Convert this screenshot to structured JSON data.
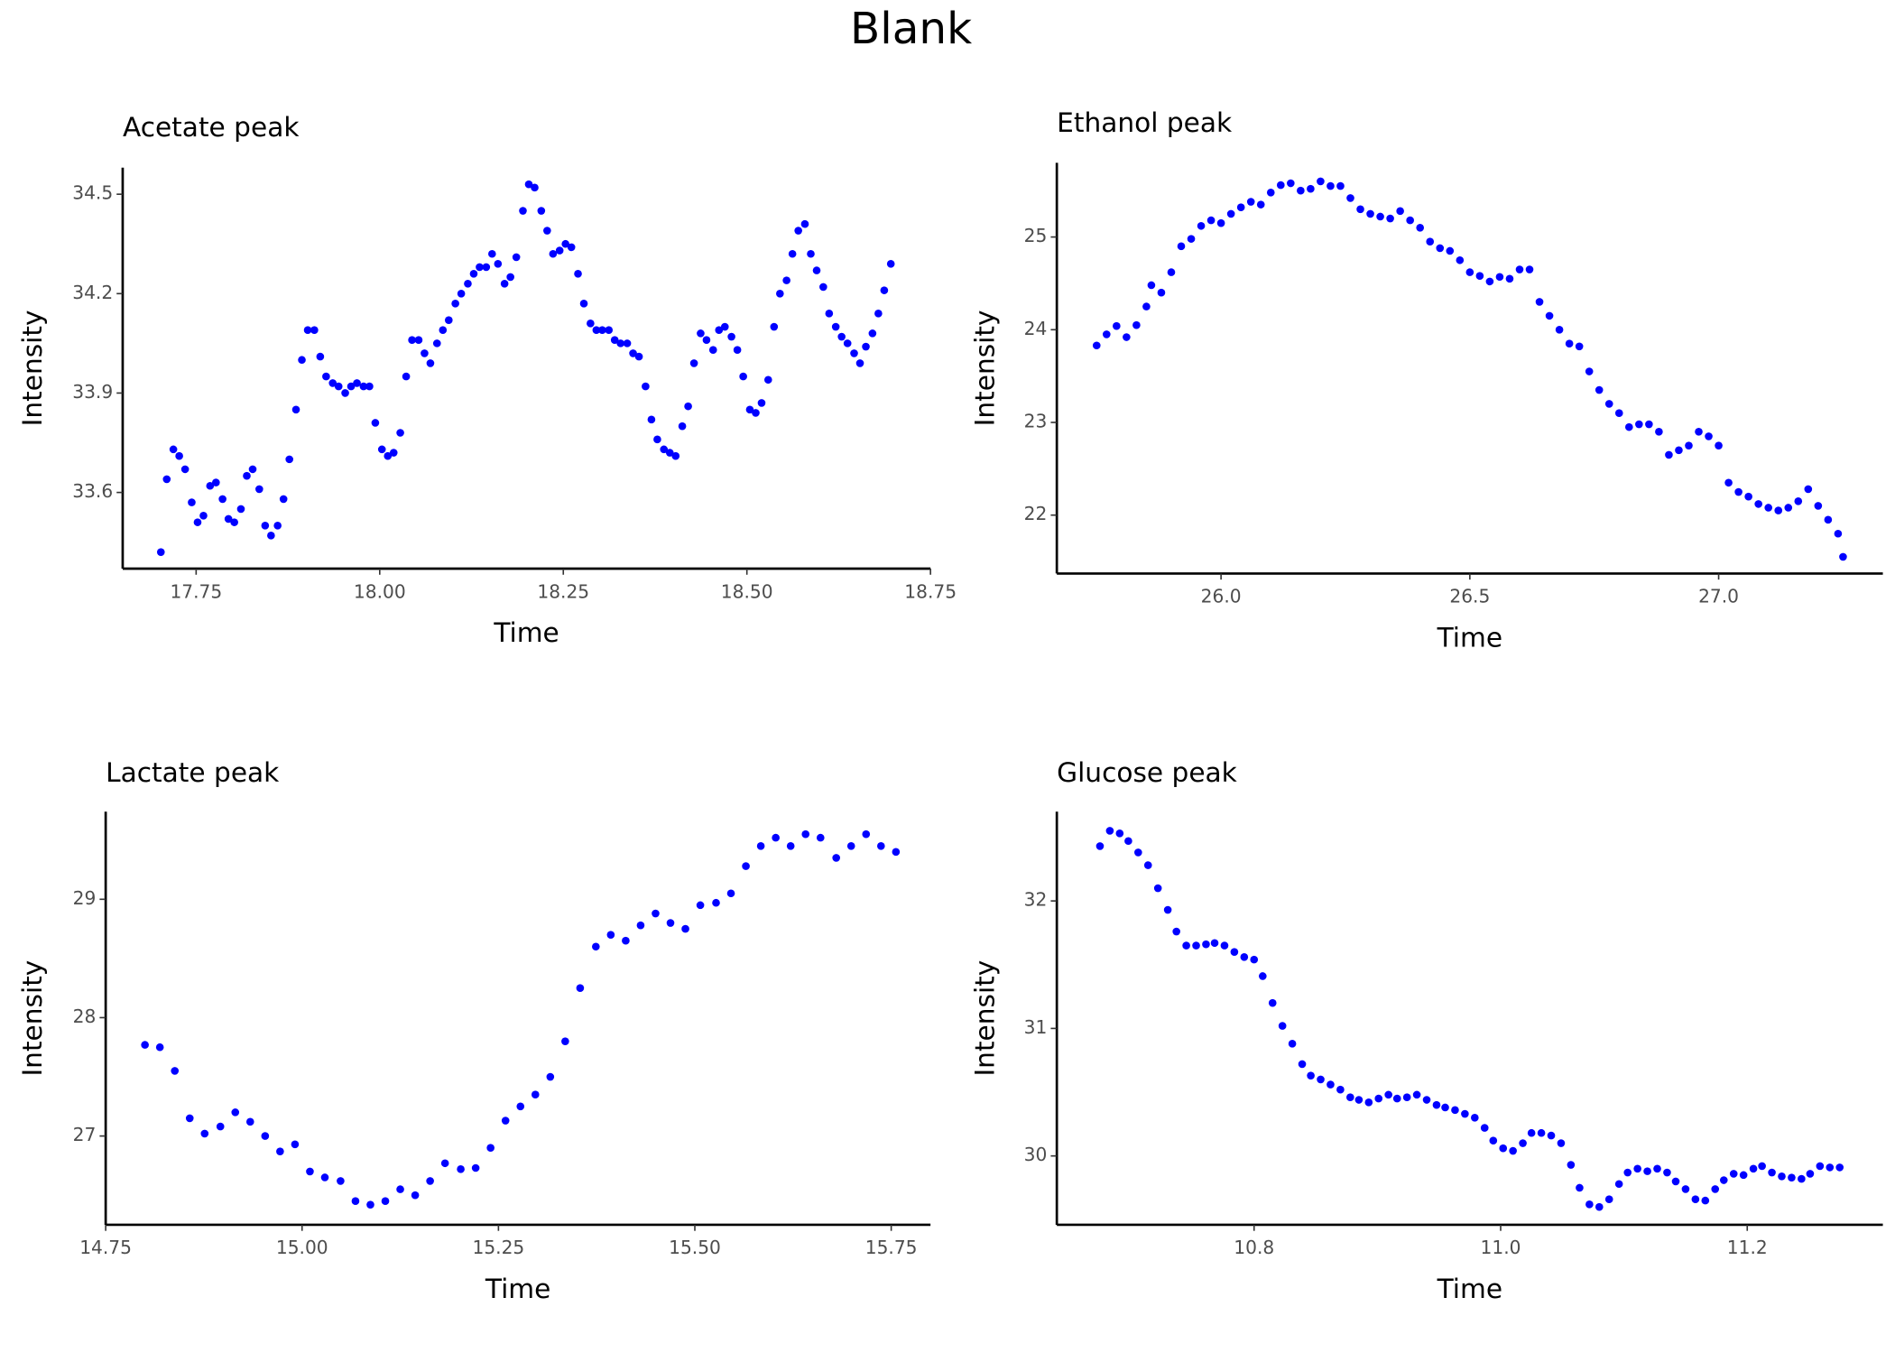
{
  "title": "Blank",
  "chart_data": [
    {
      "type": "scatter",
      "title": "Acetate peak",
      "x_label": "Time",
      "y_label": "Intensity",
      "xlim": [
        17.65,
        18.75
      ],
      "ylim": [
        33.37,
        34.58
      ],
      "xticks": [
        17.75,
        {
          "value": 18,
          "label": "18.00"
        },
        18.25,
        {
          "value": 18.5,
          "label": "18.50"
        },
        18.75
      ],
      "yticks": [
        33.6,
        33.9,
        34.2,
        34.5
      ],
      "x": [
        17.702,
        17.71,
        17.719,
        17.727,
        17.735,
        17.744,
        17.752,
        17.76,
        17.769,
        17.777,
        17.786,
        17.794,
        17.802,
        17.811,
        17.819,
        17.827,
        17.836,
        17.844,
        17.852,
        17.861,
        17.869,
        17.877,
        17.886,
        17.894,
        17.902,
        17.911,
        17.919,
        17.927,
        17.936,
        17.944,
        17.953,
        17.961,
        17.969,
        17.978,
        17.986,
        17.994,
        18.003,
        18.011,
        18.019,
        18.028,
        18.036,
        18.044,
        18.053,
        18.061,
        18.069,
        18.078,
        18.086,
        18.094,
        18.103,
        18.111,
        18.12,
        18.128,
        18.136,
        18.145,
        18.153,
        18.161,
        18.17,
        18.178,
        18.186,
        18.195,
        18.203,
        18.211,
        18.22,
        18.228,
        18.236,
        18.245,
        18.253,
        18.261,
        18.27,
        18.278,
        18.287,
        18.295,
        18.303,
        18.312,
        18.32,
        18.328,
        18.337,
        18.345,
        18.353,
        18.362,
        18.37,
        18.378,
        18.387,
        18.395,
        18.403,
        18.412,
        18.42,
        18.428,
        18.437,
        18.445,
        18.454,
        18.462,
        18.47,
        18.479,
        18.487,
        18.495,
        18.504,
        18.512,
        18.52,
        18.529,
        18.537,
        18.545,
        18.554,
        18.562,
        18.57,
        18.579,
        18.587,
        18.595,
        18.604,
        18.612,
        18.621,
        18.629,
        18.637,
        18.646,
        18.654,
        18.662,
        18.671,
        18.679,
        18.687,
        18.696
      ],
      "series": [
        {
          "color": "#0000ff",
          "values": [
            33.42,
            33.64,
            33.73,
            33.71,
            33.67,
            33.57,
            33.51,
            33.53,
            33.62,
            33.63,
            33.58,
            33.52,
            33.51,
            33.55,
            33.65,
            33.67,
            33.61,
            33.5,
            33.47,
            33.5,
            33.58,
            33.7,
            33.85,
            34.0,
            34.09,
            34.09,
            34.01,
            33.95,
            33.93,
            33.92,
            33.9,
            33.92,
            33.93,
            33.92,
            33.92,
            33.81,
            33.73,
            33.71,
            33.72,
            33.78,
            33.95,
            34.06,
            34.06,
            34.02,
            33.99,
            34.05,
            34.09,
            34.12,
            34.17,
            34.2,
            34.23,
            34.26,
            34.28,
            34.28,
            34.32,
            34.29,
            34.23,
            34.25,
            34.31,
            34.45,
            34.53,
            34.52,
            34.45,
            34.39,
            34.32,
            34.33,
            34.35,
            34.34,
            34.26,
            34.17,
            34.11,
            34.09,
            34.09,
            34.09,
            34.06,
            34.05,
            34.05,
            34.02,
            34.01,
            33.92,
            33.82,
            33.76,
            33.73,
            33.72,
            33.71,
            33.8,
            33.86,
            33.99,
            34.08,
            34.06,
            34.03,
            34.09,
            34.1,
            34.07,
            34.03,
            33.95,
            33.85,
            33.84,
            33.87,
            33.94,
            34.1,
            34.2,
            34.24,
            34.32,
            34.39,
            34.41,
            34.32,
            34.27,
            34.22,
            34.14,
            34.1,
            34.07,
            34.05,
            34.02,
            33.99,
            34.04,
            34.08,
            34.14,
            34.21,
            34.29
          ]
        }
      ]
    },
    {
      "type": "scatter",
      "title": "Ethanol peak",
      "x_label": "Time",
      "y_label": "Intensity",
      "xlim": [
        25.67,
        27.33
      ],
      "ylim": [
        21.37,
        25.8
      ],
      "xticks": [
        {
          "value": 26,
          "label": "26.0"
        },
        26.5,
        {
          "value": 27,
          "label": "27.0"
        }
      ],
      "yticks": [
        22,
        23,
        24,
        25
      ],
      "x": [
        25.75,
        25.77,
        25.79,
        25.81,
        25.83,
        25.85,
        25.86,
        25.88,
        25.9,
        25.92,
        25.94,
        25.96,
        25.98,
        26.0,
        26.02,
        26.04,
        26.06,
        26.08,
        26.1,
        26.12,
        26.14,
        26.16,
        26.18,
        26.2,
        26.22,
        26.24,
        26.26,
        26.28,
        26.3,
        26.32,
        26.34,
        26.36,
        26.38,
        26.4,
        26.42,
        26.44,
        26.46,
        26.48,
        26.5,
        26.52,
        26.54,
        26.56,
        26.58,
        26.6,
        26.62,
        26.64,
        26.66,
        26.68,
        26.7,
        26.72,
        26.74,
        26.76,
        26.78,
        26.8,
        26.82,
        26.84,
        26.86,
        26.88,
        26.9,
        26.92,
        26.94,
        26.96,
        26.98,
        27.0,
        27.02,
        27.04,
        27.06,
        27.08,
        27.1,
        27.12,
        27.14,
        27.16,
        27.18,
        27.2,
        27.22,
        27.24,
        27.25
      ],
      "series": [
        {
          "color": "#0000ff",
          "values": [
            23.83,
            23.95,
            24.04,
            23.92,
            24.05,
            24.25,
            24.48,
            24.4,
            24.62,
            24.9,
            24.98,
            25.12,
            25.18,
            25.15,
            25.25,
            25.32,
            25.38,
            25.35,
            25.48,
            25.56,
            25.58,
            25.5,
            25.52,
            25.6,
            25.55,
            25.55,
            25.42,
            25.3,
            25.25,
            25.22,
            25.2,
            25.28,
            25.18,
            25.1,
            24.95,
            24.88,
            24.85,
            24.75,
            24.62,
            24.58,
            24.52,
            24.57,
            24.55,
            24.65,
            24.65,
            24.3,
            24.15,
            24.0,
            23.85,
            23.82,
            23.55,
            23.35,
            23.2,
            23.1,
            22.95,
            22.98,
            22.98,
            22.9,
            22.65,
            22.7,
            22.75,
            22.9,
            22.85,
            22.75,
            22.35,
            22.25,
            22.2,
            22.12,
            22.08,
            22.05,
            22.08,
            22.15,
            22.28,
            22.1,
            21.95,
            21.8,
            21.55
          ]
        }
      ]
    },
    {
      "type": "scatter",
      "title": "Lactate peak",
      "x_label": "Time",
      "y_label": "Intensity",
      "xlim": [
        14.75,
        15.8
      ],
      "ylim": [
        26.25,
        29.74
      ],
      "xticks": [
        14.75,
        {
          "value": 15,
          "label": "15.00"
        },
        15.25,
        {
          "value": 15.5,
          "label": "15.50"
        },
        15.75
      ],
      "yticks": [
        27,
        28,
        29
      ],
      "x": [
        14.8,
        14.819,
        14.838,
        14.857,
        14.876,
        14.896,
        14.915,
        14.934,
        14.953,
        14.972,
        14.991,
        15.01,
        15.029,
        15.049,
        15.068,
        15.087,
        15.106,
        15.125,
        15.144,
        15.163,
        15.182,
        15.202,
        15.221,
        15.24,
        15.259,
        15.278,
        15.297,
        15.316,
        15.335,
        15.354,
        15.374,
        15.393,
        15.412,
        15.431,
        15.45,
        15.469,
        15.488,
        15.507,
        15.527,
        15.546,
        15.565,
        15.584,
        15.603,
        15.622,
        15.641,
        15.66,
        15.68,
        15.699,
        15.718,
        15.737,
        15.756
      ],
      "series": [
        {
          "color": "#0000ff",
          "values": [
            27.77,
            27.75,
            27.55,
            27.15,
            27.02,
            27.08,
            27.2,
            27.12,
            27.0,
            26.87,
            26.93,
            26.7,
            26.65,
            26.62,
            26.45,
            26.42,
            26.45,
            26.55,
            26.5,
            26.62,
            26.77,
            26.72,
            26.73,
            26.9,
            27.13,
            27.25,
            27.35,
            27.5,
            27.8,
            28.25,
            28.6,
            28.7,
            28.65,
            28.78,
            28.88,
            28.8,
            28.75,
            28.95,
            28.97,
            29.05,
            29.28,
            29.45,
            29.52,
            29.45,
            29.55,
            29.52,
            29.35,
            29.45,
            29.55,
            29.45,
            29.4
          ]
        }
      ]
    },
    {
      "type": "scatter",
      "title": "Glucose peak",
      "x_label": "Time",
      "y_label": "Intensity",
      "xlim": [
        10.64,
        11.31
      ],
      "ylim": [
        29.46,
        32.7
      ],
      "xticks": [
        10.8,
        {
          "value": 11,
          "label": "11.0"
        },
        11.2
      ],
      "yticks": [
        30,
        31,
        32
      ],
      "x": [
        10.675,
        10.683,
        10.691,
        10.698,
        10.706,
        10.714,
        10.722,
        10.73,
        10.737,
        10.745,
        10.753,
        10.761,
        10.768,
        10.776,
        10.784,
        10.792,
        10.8,
        10.807,
        10.815,
        10.823,
        10.831,
        10.839,
        10.846,
        10.854,
        10.862,
        10.87,
        10.878,
        10.885,
        10.893,
        10.901,
        10.909,
        10.916,
        10.924,
        10.932,
        10.94,
        10.948,
        10.955,
        10.963,
        10.971,
        10.979,
        10.987,
        10.994,
        11.002,
        11.01,
        11.018,
        11.025,
        11.033,
        11.041,
        11.049,
        11.057,
        11.064,
        11.072,
        11.08,
        11.088,
        11.096,
        11.103,
        11.111,
        11.119,
        11.127,
        11.135,
        11.142,
        11.15,
        11.158,
        11.166,
        11.174,
        11.181,
        11.189,
        11.197,
        11.205,
        11.212,
        11.22,
        11.228,
        11.236,
        11.244,
        11.251,
        11.259,
        11.267,
        11.275
      ],
      "series": [
        {
          "color": "#0000ff",
          "values": [
            32.43,
            32.55,
            32.53,
            32.47,
            32.38,
            32.28,
            32.1,
            31.93,
            31.76,
            31.65,
            31.65,
            31.66,
            31.67,
            31.65,
            31.6,
            31.56,
            31.54,
            31.41,
            31.2,
            31.02,
            30.88,
            30.72,
            30.63,
            30.6,
            30.56,
            30.52,
            30.46,
            30.44,
            30.42,
            30.45,
            30.48,
            30.45,
            30.46,
            30.48,
            30.44,
            30.4,
            30.38,
            30.36,
            30.33,
            30.3,
            30.22,
            30.12,
            30.06,
            30.04,
            30.1,
            30.18,
            30.18,
            30.16,
            30.1,
            29.93,
            29.75,
            29.62,
            29.6,
            29.66,
            29.78,
            29.87,
            29.9,
            29.88,
            29.9,
            29.87,
            29.8,
            29.74,
            29.66,
            29.65,
            29.74,
            29.81,
            29.86,
            29.85,
            29.9,
            29.92,
            29.87,
            29.84,
            29.83,
            29.82,
            29.86,
            29.92,
            29.91,
            29.91
          ]
        }
      ]
    }
  ]
}
